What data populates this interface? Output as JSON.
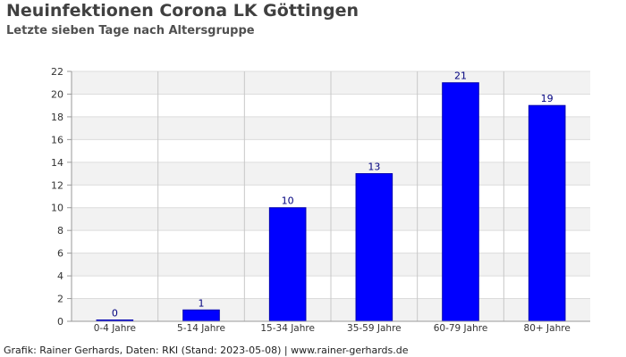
{
  "chart_data": {
    "type": "bar",
    "title": "Neuinfektionen Corona LK Göttingen",
    "subtitle": "Letzte sieben Tage nach Altersgruppe",
    "categories": [
      "0-4 Jahre",
      "5-14 Jahre",
      "15-34 Jahre",
      "35-59 Jahre",
      "60-79 Jahre",
      "80+ Jahre"
    ],
    "values": [
      0,
      1,
      10,
      13,
      21,
      19
    ],
    "ylim": [
      0,
      22
    ],
    "yticks": [
      0,
      2,
      4,
      6,
      8,
      10,
      12,
      14,
      16,
      18,
      20,
      22
    ],
    "xlabel": "",
    "ylabel": "",
    "grid": true,
    "bar_color": "#0000ff",
    "label_color": "#00007f"
  },
  "footer": "Grafik: Rainer Gerhards, Daten: RKI (Stand: 2023-05-08) | www.rainer-gerhards.de"
}
